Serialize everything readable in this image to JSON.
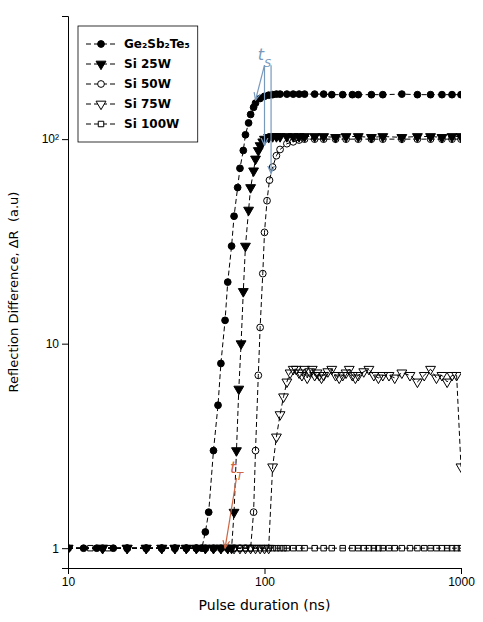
{
  "chart_data": {
    "type": "line",
    "xlabel": "Pulse duration (ns)",
    "ylabel": "Reflection Difference, ΔR  (a.u)",
    "log": true,
    "grid": false,
    "legend": "upper left",
    "xlim": [
      10,
      1000
    ],
    "ylim": [
      0.8,
      400
    ],
    "xticks": [
      10,
      100,
      1000
    ],
    "yticks": [
      1,
      10,
      {
        "value": 100,
        "label": "10²"
      }
    ],
    "series": [
      {
        "name": "Ge₂Sb₂Te₅",
        "color": "#000000",
        "marker": "circle",
        "line_style": "dashed",
        "x": [
          10,
          12,
          14,
          17,
          20,
          25,
          30,
          35,
          40,
          45,
          48,
          50,
          52,
          55,
          58,
          60,
          63,
          65,
          68,
          70,
          73,
          75,
          78,
          80,
          83,
          85,
          88,
          90,
          95,
          100,
          105,
          110,
          115,
          120,
          130,
          140,
          150,
          160,
          180,
          200,
          220,
          250,
          280,
          300,
          350,
          400,
          500,
          600,
          700,
          800,
          900,
          1000
        ],
        "values": [
          1.0,
          1.0,
          1.0,
          1.0,
          1.0,
          1.0,
          1.0,
          1.0,
          1.0,
          1.0,
          1.0,
          1.2,
          1.5,
          3.0,
          5.0,
          8.0,
          13.0,
          20.0,
          30.0,
          42.0,
          58.0,
          72.0,
          88.0,
          105.0,
          120.0,
          132.0,
          143.0,
          150.0,
          158.0,
          162.0,
          164.0,
          165.0,
          166.0,
          166.0,
          166.0,
          166.0,
          166.0,
          166.0,
          166.0,
          166.0,
          165.0,
          165.0,
          165.0,
          165.0,
          165.0,
          165.0,
          166.0,
          165.0,
          165.0,
          165.0,
          165.0,
          165.0
        ]
      },
      {
        "name": "Si 25W",
        "color": "#000000",
        "marker": "triangle-down",
        "line_style": "dashed",
        "x": [
          10,
          15,
          20,
          25,
          30,
          35,
          40,
          45,
          50,
          55,
          60,
          65,
          68,
          70,
          72,
          74,
          76,
          78,
          80,
          83,
          85,
          88,
          90,
          93,
          95,
          98,
          100,
          105,
          110,
          115,
          120,
          130,
          140,
          150,
          160,
          180,
          200,
          230,
          260,
          300,
          350,
          400,
          500,
          600,
          700,
          800,
          900,
          1000
        ],
        "values": [
          1.0,
          1.0,
          1.0,
          1.0,
          1.0,
          1.0,
          1.0,
          1.0,
          1.0,
          1.0,
          1.0,
          1.0,
          1.0,
          1.5,
          3.0,
          6.0,
          10.0,
          18.0,
          30.0,
          45.0,
          58.0,
          70.0,
          80.0,
          88.0,
          93.0,
          97.0,
          100.0,
          102.0,
          103.0,
          103.0,
          103.0,
          103.0,
          103.0,
          103.0,
          103.0,
          103.0,
          103.0,
          102.0,
          103.0,
          103.0,
          102.0,
          103.0,
          102.0,
          103.0,
          103.0,
          102.0,
          103.0,
          103.0
        ]
      },
      {
        "name": "Si 50W",
        "color": "#000000",
        "marker": "circle-open",
        "line_style": "dashed",
        "x": [
          10,
          15,
          20,
          25,
          30,
          35,
          40,
          45,
          50,
          55,
          60,
          65,
          70,
          75,
          80,
          85,
          88,
          90,
          93,
          95,
          98,
          100,
          103,
          106,
          110,
          115,
          120,
          130,
          140,
          150,
          160,
          180,
          200,
          230,
          260,
          300,
          350,
          400,
          500,
          600,
          700,
          800,
          900,
          1000
        ],
        "values": [
          1.0,
          1.0,
          1.0,
          1.0,
          1.0,
          1.0,
          1.0,
          1.0,
          1.0,
          1.0,
          1.0,
          1.0,
          1.0,
          1.0,
          1.0,
          1.0,
          1.5,
          3.0,
          7.0,
          12.0,
          22.0,
          35.0,
          50.0,
          63.0,
          73.0,
          83.0,
          89.0,
          95.0,
          97.0,
          99.0,
          100.0,
          100.0,
          100.0,
          100.0,
          100.0,
          100.0,
          100.0,
          100.0,
          100.0,
          100.0,
          100.0,
          100.0,
          100.0,
          100.0
        ]
      },
      {
        "name": "Si 75W",
        "color": "#000000",
        "marker": "triangle-down-open",
        "line_style": "dashed",
        "x": [
          10,
          15,
          20,
          25,
          30,
          35,
          40,
          45,
          50,
          55,
          60,
          65,
          70,
          75,
          80,
          85,
          90,
          95,
          100,
          105,
          110,
          115,
          120,
          125,
          130,
          135,
          140,
          145,
          150,
          155,
          160,
          165,
          170,
          175,
          180,
          185,
          190,
          195,
          200,
          210,
          220,
          230,
          240,
          250,
          260,
          270,
          280,
          290,
          300,
          320,
          340,
          360,
          380,
          400,
          430,
          460,
          500,
          550,
          600,
          650,
          700,
          750,
          800,
          850,
          900,
          950,
          1000
        ],
        "values": [
          1.0,
          1.0,
          1.0,
          1.0,
          1.0,
          1.0,
          1.0,
          1.0,
          1.0,
          1.0,
          1.0,
          1.0,
          1.0,
          1.0,
          1.0,
          1.0,
          1.0,
          1.0,
          1.0,
          1.0,
          2.5,
          3.5,
          4.5,
          5.5,
          6.5,
          7.2,
          7.5,
          7.5,
          7.2,
          7.0,
          7.5,
          6.8,
          7.3,
          7.5,
          7.0,
          7.2,
          7.0,
          6.8,
          7.0,
          7.3,
          7.5,
          7.0,
          6.8,
          7.0,
          7.2,
          7.5,
          7.0,
          6.8,
          7.0,
          7.3,
          7.5,
          7.0,
          6.8,
          7.0,
          7.0,
          6.8,
          7.2,
          7.0,
          6.5,
          7.0,
          7.5,
          6.8,
          7.0,
          6.5,
          7.0,
          7.0,
          2.5
        ]
      },
      {
        "name": "Si 100W",
        "color": "#000000",
        "marker": "square-open",
        "line_style": "dashed",
        "x": [
          10,
          13,
          16,
          20,
          25,
          30,
          35,
          40,
          45,
          50,
          55,
          60,
          65,
          70,
          75,
          80,
          85,
          90,
          95,
          100,
          105,
          110,
          115,
          120,
          125,
          130,
          140,
          150,
          160,
          180,
          200,
          220,
          250,
          280,
          300,
          320,
          340,
          360,
          380,
          400,
          430,
          460,
          500,
          550,
          600,
          650,
          700,
          750,
          800,
          850,
          900,
          950,
          1000
        ],
        "values": [
          1.0,
          1.0,
          1.0,
          1.0,
          1.0,
          1.0,
          1.0,
          1.0,
          1.0,
          1.0,
          1.0,
          1.0,
          1.0,
          1.0,
          1.0,
          1.0,
          1.0,
          1.0,
          1.0,
          1.0,
          1.0,
          1.0,
          1.0,
          1.0,
          1.0,
          1.0,
          1.0,
          1.0,
          1.0,
          1.0,
          1.0,
          1.0,
          1.0,
          1.0,
          1.0,
          1.0,
          1.0,
          1.0,
          1.0,
          1.0,
          1.0,
          1.0,
          1.0,
          1.0,
          1.0,
          1.0,
          1.0,
          1.0,
          1.0,
          1.0,
          1.0,
          1.0,
          1.0
        ]
      }
    ],
    "annotations": [
      {
        "text": "tS",
        "x": 90,
        "y": 155,
        "text_x": 100,
        "text_y": 230,
        "color": "#7799bb"
      },
      {
        "x": 100,
        "y": 93,
        "text_x": 100,
        "text_y": 230,
        "color": "#7799bb"
      },
      {
        "x": 108,
        "y": 68,
        "text_x": 108,
        "text_y": 230,
        "color": "#7799bb"
      },
      {
        "text": "tT",
        "x": 63,
        "y": 1.0,
        "text_x": 72,
        "text_y": 2.2,
        "color": "#cc6644"
      }
    ]
  }
}
